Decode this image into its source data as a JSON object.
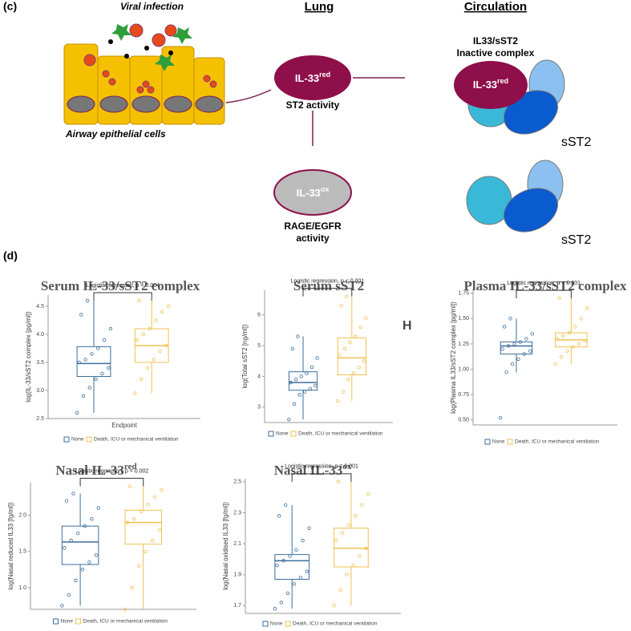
{
  "diagram": {
    "panel": "(c)",
    "viral": "Viral infection",
    "lung": "Lung",
    "circulation": "Circulation",
    "il33": "IL-33",
    "red": "red",
    "ox": "ox",
    "st2_activity": "ST2 activity",
    "rage1": "RAGE/EGFR",
    "rage2": "activity",
    "complex1": "IL33/sST2",
    "complex2": "Inactive complex",
    "sst2a": "sST2",
    "sst2b": "sST2",
    "airway": "Airway epithelial cells"
  },
  "panel_d": "(d)",
  "chart_data": [
    {
      "type": "box",
      "title": "Serum IL-33/sST2 complex",
      "annotation": "Logistic regression, p = 0.004",
      "y_label": "log(IL-33/sST2 complex [pg/ml])",
      "x_label": "Endpoint",
      "ylim": [
        2.5,
        4.7
      ],
      "yticks": [
        2.5,
        {
          "value": 3,
          "label": "3.0"
        },
        3.5,
        {
          "value": 4,
          "label": "4.0"
        },
        4.5
      ],
      "series": [
        {
          "name": "None",
          "color": "#3c6e9c",
          "box": [
            2.6,
            3.25,
            3.48,
            3.78,
            4.6
          ],
          "points": [
            2.6,
            2.9,
            3.05,
            3.2,
            3.3,
            3.4,
            3.5,
            3.55,
            3.65,
            3.75,
            3.9,
            4.1,
            4.35,
            4.6
          ]
        },
        {
          "name": "Death, ICU or mechanical ventilation",
          "color": "#f0c050",
          "box": [
            2.95,
            3.5,
            3.8,
            4.1,
            4.6
          ],
          "points": [
            2.95,
            3.2,
            3.4,
            3.55,
            3.7,
            3.8,
            3.9,
            4.0,
            4.1,
            4.25,
            4.4,
            4.5,
            4.6
          ]
        }
      ]
    },
    {
      "type": "box",
      "title": "Serum sST2",
      "annotation": "Logistic regression, p < 0.001",
      "y_label": "log(Total sST2 [ng/ml])",
      "note": "H",
      "ylim": [
        2.5,
        6.8
      ],
      "yticks": [
        3,
        4,
        5,
        6
      ],
      "series": [
        {
          "name": "None",
          "color": "#3c6e9c",
          "box": [
            2.6,
            3.55,
            3.8,
            4.15,
            5.3
          ],
          "points": [
            2.6,
            3.1,
            3.4,
            3.5,
            3.6,
            3.7,
            3.8,
            3.9,
            4.0,
            4.1,
            4.3,
            4.6,
            4.9,
            5.3
          ]
        },
        {
          "name": "Death, ICU or mechanical ventilation",
          "color": "#f0c050",
          "box": [
            3.2,
            4.05,
            4.6,
            5.25,
            6.6
          ],
          "points": [
            3.2,
            3.5,
            3.9,
            4.1,
            4.3,
            4.5,
            4.7,
            4.9,
            5.1,
            5.3,
            5.6,
            5.9,
            6.3,
            6.6
          ]
        }
      ]
    },
    {
      "type": "box",
      "title": "Plasma IL-33/sST2 complex",
      "annotation": "Logistic regression, p < 0.001",
      "y_label": "log(Plasma IL33/sST2 complex [pg/ml])",
      "ylim": [
        0.45,
        1.78
      ],
      "yticks": [
        {
          "value": 0.5,
          "label": "0.50"
        },
        0.75,
        {
          "value": 1,
          "label": "1.00"
        },
        1.25,
        {
          "value": 1.5,
          "label": "1.50"
        },
        1.75
      ],
      "series": [
        {
          "name": "None",
          "color": "#3c6e9c",
          "box": [
            0.97,
            1.15,
            1.23,
            1.27,
            1.5
          ],
          "points": [
            0.52,
            0.97,
            1.05,
            1.1,
            1.15,
            1.18,
            1.2,
            1.23,
            1.25,
            1.27,
            1.3,
            1.35,
            1.42,
            1.5
          ]
        },
        {
          "name": "Death, ICU or mechanical ventilation",
          "color": "#f0c050",
          "box": [
            1.05,
            1.22,
            1.29,
            1.36,
            1.7
          ],
          "points": [
            1.05,
            1.12,
            1.18,
            1.22,
            1.25,
            1.28,
            1.3,
            1.33,
            1.36,
            1.42,
            1.5,
            1.6,
            1.7
          ]
        }
      ]
    },
    {
      "type": "box",
      "title": "Nasal IL-33",
      "title_sup": "red",
      "annotation": "Logistic regression, p = 0.002",
      "y_label": "log(Nasal reduced IL33 [fg/ml])",
      "ylim": [
        0.7,
        2.45
      ],
      "yticks": [
        {
          "value": 1,
          "label": "1.0"
        },
        1.5,
        {
          "value": 2,
          "label": "2.0"
        }
      ],
      "series": [
        {
          "name": "None",
          "color": "#3c6e9c",
          "box": [
            0.75,
            1.32,
            1.63,
            1.85,
            2.3
          ],
          "points": [
            0.75,
            0.9,
            1.1,
            1.25,
            1.35,
            1.45,
            1.55,
            1.65,
            1.75,
            1.85,
            1.95,
            2.1,
            2.2,
            2.3
          ]
        },
        {
          "name": "Death, ICU or mechanical ventilation",
          "color": "#f0c050",
          "box": [
            0.7,
            1.6,
            1.9,
            2.07,
            2.4
          ],
          "points": [
            0.7,
            1.0,
            1.3,
            1.5,
            1.65,
            1.8,
            1.9,
            1.95,
            2.05,
            2.15,
            2.25,
            2.35,
            2.4
          ]
        }
      ]
    },
    {
      "type": "box",
      "title": "Nasal IL-33",
      "title_sup": "ox",
      "annotation": "Logistic regression, p = 0.001",
      "y_label": "log(Nasal oxidised IL33 [fg/ml])",
      "ylim": [
        1.65,
        2.52
      ],
      "yticks": [
        1.7,
        1.9,
        2.1,
        2.3,
        2.5
      ],
      "series": [
        {
          "name": "None",
          "color": "#3c6e9c",
          "box": [
            1.68,
            1.87,
            1.99,
            2.03,
            2.35
          ],
          "points": [
            1.68,
            1.72,
            1.78,
            1.84,
            1.88,
            1.92,
            1.96,
            1.99,
            2.02,
            2.06,
            2.12,
            2.2,
            2.28,
            2.35
          ]
        },
        {
          "name": "Death, ICU or mechanical ventilation",
          "color": "#f0c050",
          "box": [
            1.7,
            1.95,
            2.07,
            2.2,
            2.5
          ],
          "points": [
            1.7,
            1.8,
            1.9,
            1.96,
            2.02,
            2.07,
            2.12,
            2.17,
            2.22,
            2.28,
            2.35,
            2.42,
            2.5
          ]
        }
      ]
    }
  ]
}
